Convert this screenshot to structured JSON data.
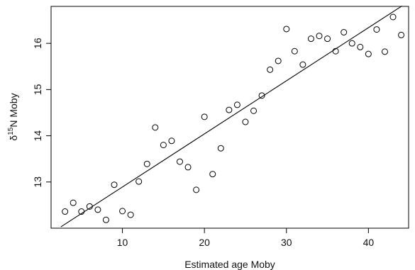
{
  "chart_data": {
    "type": "scatter",
    "title": "",
    "xlabel": "Estimated age Moby",
    "ylabel": "δ15N Moby",
    "ylabel_parts": {
      "delta": "δ",
      "superscript": "15",
      "rest": "N Moby"
    },
    "xlim": [
      1.3,
      44.9
    ],
    "ylim": [
      12.0,
      16.8
    ],
    "x_ticks": [
      10,
      20,
      30,
      40
    ],
    "y_ticks": [
      13,
      14,
      15,
      16
    ],
    "grid": false,
    "legend": "none",
    "marker": "open circle",
    "colors": {
      "points": "#000000",
      "line": "#000000",
      "axes": "#000000"
    },
    "points": [
      {
        "x": 3,
        "y": 12.36
      },
      {
        "x": 4,
        "y": 12.55
      },
      {
        "x": 5,
        "y": 12.36
      },
      {
        "x": 6,
        "y": 12.47
      },
      {
        "x": 7,
        "y": 12.4
      },
      {
        "x": 8,
        "y": 12.18
      },
      {
        "x": 9,
        "y": 12.94
      },
      {
        "x": 10,
        "y": 12.37
      },
      {
        "x": 11,
        "y": 12.29
      },
      {
        "x": 12,
        "y": 13.01
      },
      {
        "x": 13,
        "y": 13.39
      },
      {
        "x": 14,
        "y": 14.18
      },
      {
        "x": 15,
        "y": 13.8
      },
      {
        "x": 16,
        "y": 13.89
      },
      {
        "x": 17,
        "y": 13.44
      },
      {
        "x": 18,
        "y": 13.32
      },
      {
        "x": 19,
        "y": 12.83
      },
      {
        "x": 20,
        "y": 14.41
      },
      {
        "x": 21,
        "y": 13.17
      },
      {
        "x": 22,
        "y": 13.73
      },
      {
        "x": 23,
        "y": 14.56
      },
      {
        "x": 24,
        "y": 14.67
      },
      {
        "x": 25,
        "y": 14.3
      },
      {
        "x": 26,
        "y": 14.54
      },
      {
        "x": 27,
        "y": 14.87
      },
      {
        "x": 28,
        "y": 15.43
      },
      {
        "x": 29,
        "y": 15.62
      },
      {
        "x": 30,
        "y": 16.31
      },
      {
        "x": 31,
        "y": 15.83
      },
      {
        "x": 32,
        "y": 15.54
      },
      {
        "x": 33,
        "y": 16.1
      },
      {
        "x": 34,
        "y": 16.16
      },
      {
        "x": 35,
        "y": 16.1
      },
      {
        "x": 36,
        "y": 15.83
      },
      {
        "x": 37,
        "y": 16.24
      },
      {
        "x": 38,
        "y": 16.0
      },
      {
        "x": 39,
        "y": 15.92
      },
      {
        "x": 40,
        "y": 15.77
      },
      {
        "x": 41,
        "y": 16.3
      },
      {
        "x": 42,
        "y": 15.82
      },
      {
        "x": 43,
        "y": 16.57
      },
      {
        "x": 44,
        "y": 16.18
      }
    ],
    "fit_line": {
      "type": "linear",
      "start": {
        "x": 2.5,
        "y": 12.03
      },
      "end": {
        "x": 44.1,
        "y": 16.81
      }
    }
  }
}
